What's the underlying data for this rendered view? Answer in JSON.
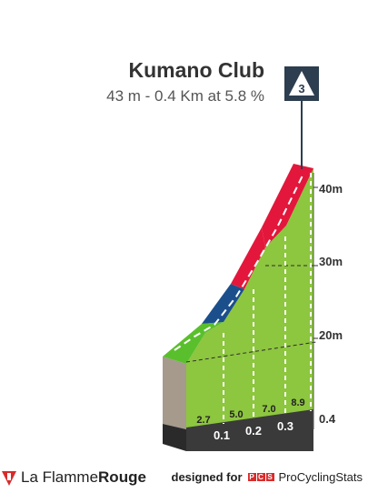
{
  "climb": {
    "name": "Kumano Club",
    "stats": "43 m - 0.4 Km at 5.8 %",
    "category": "3"
  },
  "chart_data": {
    "type": "area",
    "title": "Kumano Club",
    "subtitle": "43 m - 0.4 Km at 5.8 %",
    "distance_ticks": [
      "0.1",
      "0.2",
      "0.3"
    ],
    "distance_end": "0.4",
    "altitude_ticks": [
      "20m",
      "30m",
      "40m"
    ],
    "segments": [
      {
        "gradient": "2.7",
        "color": "#5abf2c"
      },
      {
        "gradient": "5.0",
        "color": "#1b4f8c"
      },
      {
        "gradient": "7.0",
        "color": "#e3173b"
      },
      {
        "gradient": "8.9",
        "color": "#e3173b"
      }
    ],
    "grid": true
  },
  "footer": {
    "brand_regular": "La Flamme",
    "brand_bold": "Rouge",
    "designed_for": "designed for",
    "pcs_letters": [
      "P",
      "C",
      "S"
    ],
    "pcs_name": "ProCyclingStats"
  },
  "colors": {
    "fill": "#8dc63f",
    "base": "#3a3a3a",
    "side": "#a59a8c",
    "flag": "#2c3e50"
  }
}
